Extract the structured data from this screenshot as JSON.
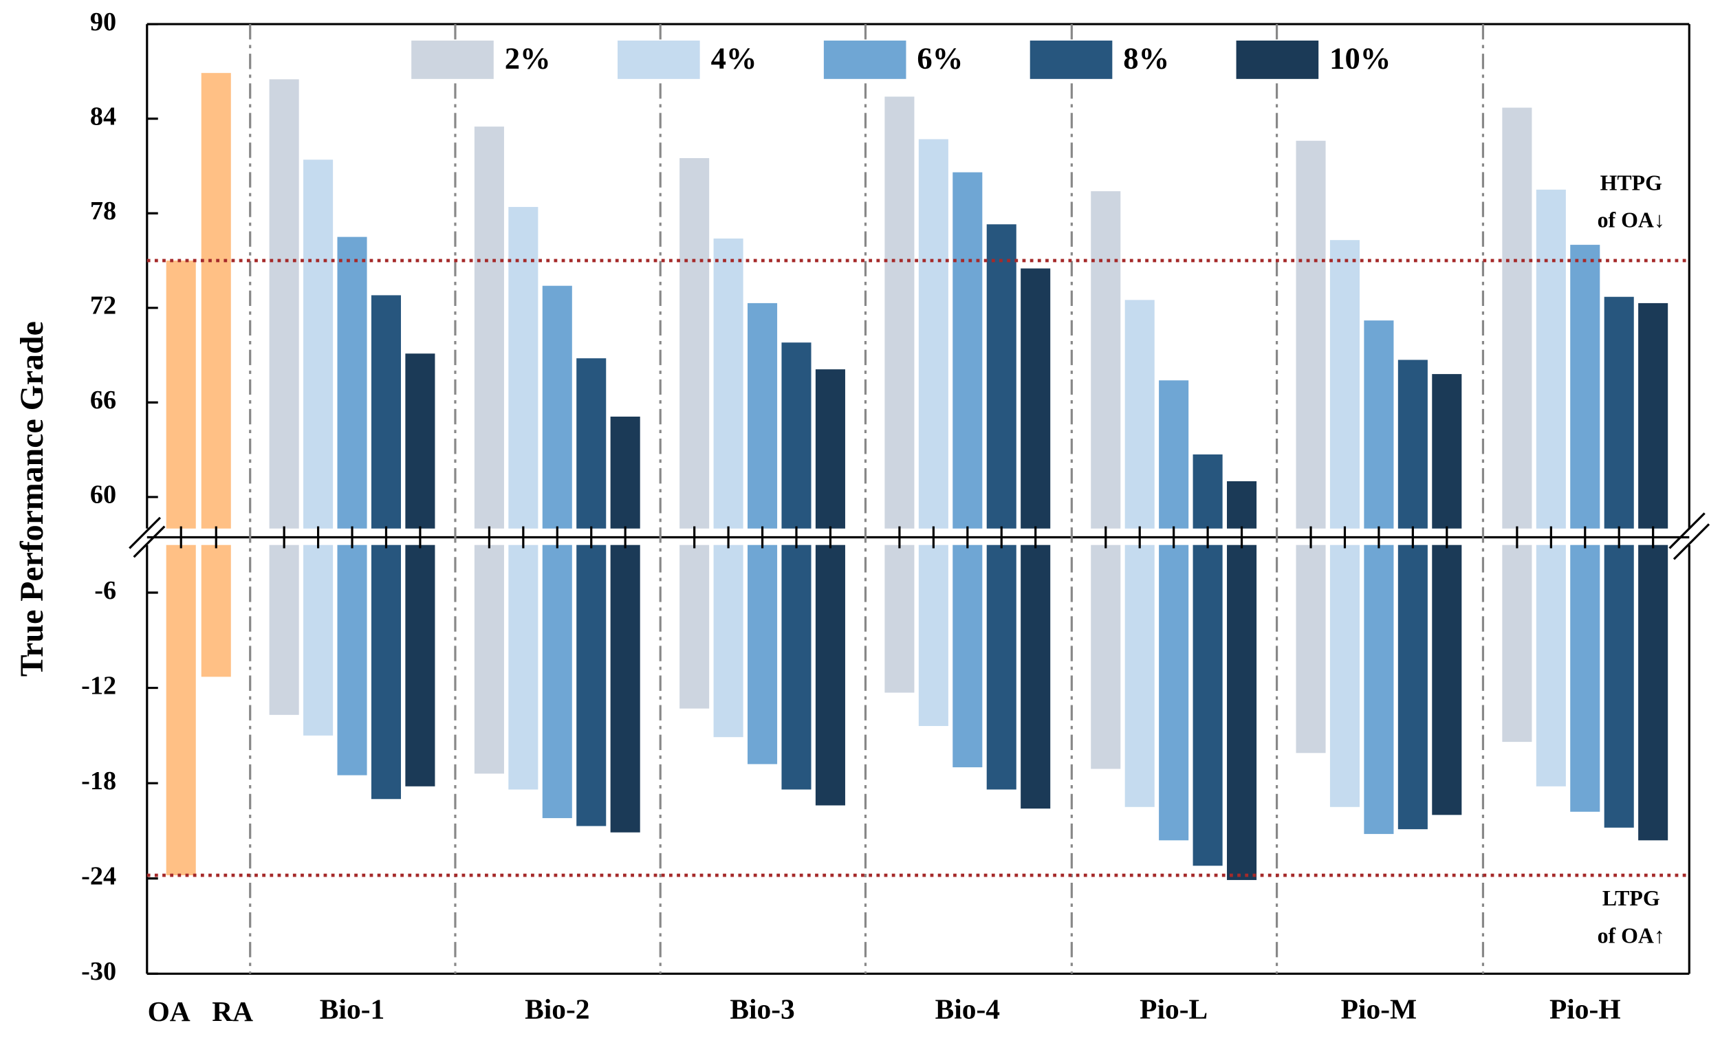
{
  "chart_data": {
    "type": "broken-bar",
    "y_label": "True Performance Grade",
    "upper": {
      "ylim": [
        58,
        90
      ],
      "yticks": [
        60,
        66,
        72,
        78,
        84,
        90
      ]
    },
    "lower": {
      "ylim": [
        -30,
        -3
      ],
      "yticks": [
        -30,
        -24,
        -18,
        -12,
        -6
      ]
    },
    "reference": {
      "categories": [
        "OA",
        "RA"
      ],
      "color": "#ffc085",
      "high": [
        75.0,
        86.9
      ],
      "low": [
        -23.8,
        -11.3
      ]
    },
    "categories": [
      "Bio-1",
      "Bio-2",
      "Bio-3",
      "Bio-4",
      "Pio-L",
      "Pio-M",
      "Pio-H"
    ],
    "series": [
      {
        "name": "2%",
        "color": "#cdd5e0",
        "high": [
          86.5,
          83.5,
          81.5,
          85.4,
          79.4,
          82.6,
          84.7
        ],
        "low": [
          -13.7,
          -17.4,
          -13.3,
          -12.3,
          -17.1,
          -16.1,
          -15.4
        ]
      },
      {
        "name": "4%",
        "color": "#c5dbef",
        "high": [
          81.4,
          78.4,
          76.4,
          82.7,
          72.5,
          76.3,
          79.5
        ],
        "low": [
          -15.0,
          -18.4,
          -15.1,
          -14.4,
          -19.5,
          -19.5,
          -18.2
        ]
      },
      {
        "name": "6%",
        "color": "#6fa6d4",
        "high": [
          76.5,
          73.4,
          72.3,
          80.6,
          67.4,
          71.2,
          76.0
        ],
        "low": [
          -17.5,
          -20.2,
          -16.8,
          -17.0,
          -21.6,
          -21.2,
          -19.8
        ]
      },
      {
        "name": "8%",
        "color": "#27567e",
        "high": [
          72.8,
          68.8,
          69.8,
          77.3,
          62.7,
          68.7,
          72.7
        ],
        "low": [
          -19.0,
          -20.7,
          -18.4,
          -18.4,
          -23.2,
          -20.9,
          -20.8
        ]
      },
      {
        "name": "10%",
        "color": "#1b3a57",
        "high": [
          69.1,
          65.1,
          68.1,
          74.5,
          61.0,
          67.8,
          72.3
        ],
        "low": [
          -18.2,
          -21.1,
          -19.4,
          -19.6,
          -24.1,
          -20.0,
          -21.6
        ]
      }
    ],
    "thresholds": [
      {
        "value": 75.0,
        "label": [
          "HTPG",
          "of OA↓"
        ],
        "color": "#a52a2a"
      },
      {
        "value": -23.8,
        "label": [
          "LTPG",
          "of OA↑"
        ],
        "color": "#a52a2a"
      }
    ]
  }
}
